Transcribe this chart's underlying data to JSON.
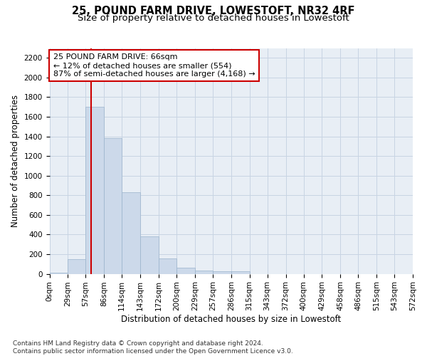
{
  "title": "25, POUND FARM DRIVE, LOWESTOFT, NR32 4RF",
  "subtitle": "Size of property relative to detached houses in Lowestoft",
  "xlabel": "Distribution of detached houses by size in Lowestoft",
  "ylabel": "Number of detached properties",
  "bar_color": "#ccd9ea",
  "bar_edgecolor": "#9ab3cc",
  "grid_color": "#c8d4e3",
  "background_color": "#e8eef5",
  "vline_x": 66,
  "vline_color": "#cc0000",
  "annotation_text": "25 POUND FARM DRIVE: 66sqm\n← 12% of detached houses are smaller (554)\n87% of semi-detached houses are larger (4,168) →",
  "annotation_box_facecolor": "#ffffff",
  "annotation_box_edgecolor": "#cc0000",
  "bin_edges": [
    0,
    29,
    57,
    86,
    114,
    143,
    172,
    200,
    229,
    257,
    286,
    315,
    343,
    372,
    400,
    429,
    458,
    486,
    515,
    543,
    572
  ],
  "bar_heights": [
    10,
    150,
    1700,
    1380,
    830,
    380,
    160,
    65,
    30,
    25,
    25,
    0,
    0,
    0,
    0,
    0,
    0,
    0,
    0,
    0
  ],
  "ylim": [
    0,
    2300
  ],
  "yticks": [
    0,
    200,
    400,
    600,
    800,
    1000,
    1200,
    1400,
    1600,
    1800,
    2000,
    2200
  ],
  "footer_text": "Contains HM Land Registry data © Crown copyright and database right 2024.\nContains public sector information licensed under the Open Government Licence v3.0.",
  "title_fontsize": 10.5,
  "subtitle_fontsize": 9.5,
  "axis_label_fontsize": 8.5,
  "tick_fontsize": 7.5,
  "annotation_fontsize": 8,
  "footer_fontsize": 6.5
}
